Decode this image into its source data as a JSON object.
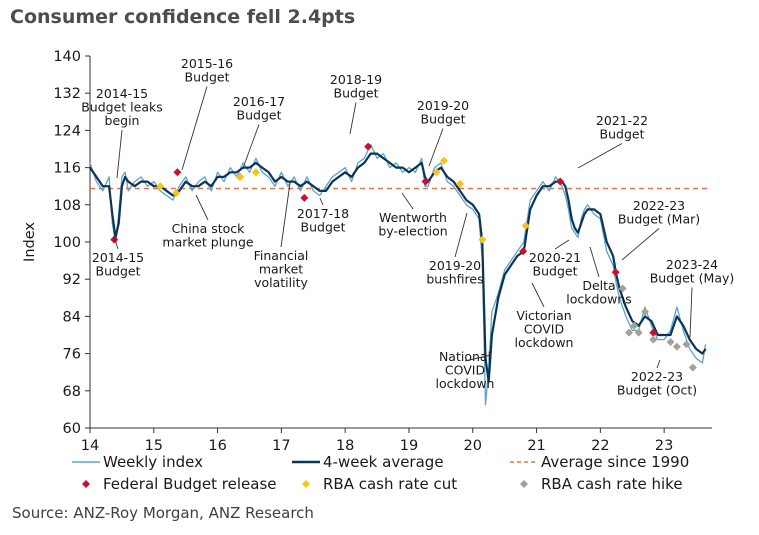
{
  "title": "Consumer confidence fell 2.4pts",
  "source": "Source: ANZ-Roy Morgan, ANZ Research",
  "colors": {
    "weekly": "#5ba3d0",
    "avg4": "#0b3553",
    "average_line": "#e8724a",
    "budget_marker": "#c8102e",
    "rate_cut_marker": "#f5c518",
    "rate_hike_marker": "#a89f97"
  },
  "chart_data": {
    "type": "line",
    "title": "Consumer confidence fell 2.4pts",
    "xlabel": "",
    "ylabel": "Index",
    "xlim": [
      2014.0,
      2023.75
    ],
    "ylim": [
      60,
      140
    ],
    "yticks": [
      60,
      68,
      76,
      84,
      92,
      100,
      108,
      116,
      124,
      132,
      140
    ],
    "xticks": [
      {
        "value": 2014,
        "label": "14"
      },
      {
        "value": 2015,
        "label": "15"
      },
      {
        "value": 2016,
        "label": "16"
      },
      {
        "value": 2017,
        "label": "17"
      },
      {
        "value": 2018,
        "label": "18"
      },
      {
        "value": 2019,
        "label": "19"
      },
      {
        "value": 2020,
        "label": "20"
      },
      {
        "value": 2021,
        "label": "21"
      },
      {
        "value": 2022,
        "label": "22"
      },
      {
        "value": 2023,
        "label": "23"
      }
    ],
    "grid": false,
    "average_since_1990": 111.5,
    "series": [
      {
        "name": "4-week average",
        "x": [
          2014.0,
          2014.1,
          2014.2,
          2014.3,
          2014.35,
          2014.4,
          2014.45,
          2014.5,
          2014.55,
          2014.6,
          2014.7,
          2014.8,
          2014.9,
          2015.0,
          2015.1,
          2015.2,
          2015.3,
          2015.4,
          2015.5,
          2015.6,
          2015.7,
          2015.8,
          2015.9,
          2016.0,
          2016.1,
          2016.2,
          2016.3,
          2016.4,
          2016.5,
          2016.6,
          2016.7,
          2016.8,
          2016.9,
          2017.0,
          2017.1,
          2017.2,
          2017.3,
          2017.4,
          2017.5,
          2017.6,
          2017.7,
          2017.8,
          2017.9,
          2018.0,
          2018.1,
          2018.2,
          2018.3,
          2018.4,
          2018.5,
          2018.6,
          2018.7,
          2018.8,
          2018.9,
          2019.0,
          2019.1,
          2019.2,
          2019.25,
          2019.3,
          2019.4,
          2019.5,
          2019.6,
          2019.7,
          2019.8,
          2019.9,
          2020.0,
          2020.1,
          2020.15,
          2020.2,
          2020.25,
          2020.3,
          2020.4,
          2020.5,
          2020.6,
          2020.7,
          2020.8,
          2020.9,
          2021.0,
          2021.1,
          2021.2,
          2021.3,
          2021.4,
          2021.45,
          2021.5,
          2021.55,
          2021.6,
          2021.65,
          2021.7,
          2021.75,
          2021.8,
          2021.9,
          2022.0,
          2022.1,
          2022.2,
          2022.25,
          2022.3,
          2022.4,
          2022.5,
          2022.6,
          2022.7,
          2022.8,
          2022.9,
          2023.0,
          2023.1,
          2023.2,
          2023.3,
          2023.4,
          2023.5,
          2023.6,
          2023.65
        ],
        "y": [
          116,
          114,
          112,
          112,
          106,
          101,
          104,
          112,
          114,
          113,
          112,
          113,
          113,
          112,
          112,
          111,
          110,
          111,
          113,
          112,
          112,
          113,
          112,
          114,
          114,
          115,
          115,
          116,
          116,
          117,
          116,
          115,
          113,
          114,
          113,
          113,
          112,
          113,
          112,
          111,
          111,
          113,
          114,
          115,
          114,
          116,
          117,
          119,
          119,
          118,
          117,
          116,
          116,
          115,
          116,
          117,
          114,
          113,
          115,
          116,
          114,
          113,
          111,
          109,
          108,
          106,
          100,
          75,
          70,
          80,
          88,
          93,
          95,
          97,
          98,
          107,
          110,
          112,
          112,
          113,
          113,
          112,
          109,
          105,
          103,
          102,
          104,
          106,
          107,
          107,
          106,
          100,
          97,
          93,
          90,
          86,
          83,
          82,
          84,
          83,
          80,
          80,
          80,
          84,
          82,
          79,
          77,
          76,
          77
        ]
      },
      {
        "name": "Weekly index",
        "x": [
          2014.0,
          2014.1,
          2014.2,
          2014.3,
          2014.35,
          2014.4,
          2014.45,
          2014.5,
          2014.55,
          2014.6,
          2014.7,
          2014.8,
          2014.9,
          2015.0,
          2015.1,
          2015.2,
          2015.3,
          2015.4,
          2015.5,
          2015.6,
          2015.7,
          2015.8,
          2015.9,
          2016.0,
          2016.1,
          2016.2,
          2016.3,
          2016.4,
          2016.5,
          2016.6,
          2016.7,
          2016.8,
          2016.9,
          2017.0,
          2017.1,
          2017.2,
          2017.3,
          2017.4,
          2017.5,
          2017.6,
          2017.7,
          2017.8,
          2017.9,
          2018.0,
          2018.1,
          2018.2,
          2018.3,
          2018.4,
          2018.5,
          2018.6,
          2018.7,
          2018.8,
          2018.9,
          2019.0,
          2019.1,
          2019.2,
          2019.25,
          2019.3,
          2019.4,
          2019.5,
          2019.6,
          2019.7,
          2019.8,
          2019.9,
          2020.0,
          2020.1,
          2020.15,
          2020.2,
          2020.25,
          2020.3,
          2020.4,
          2020.5,
          2020.6,
          2020.7,
          2020.8,
          2020.9,
          2021.0,
          2021.1,
          2021.2,
          2021.3,
          2021.4,
          2021.45,
          2021.5,
          2021.55,
          2021.6,
          2021.65,
          2021.7,
          2021.75,
          2021.8,
          2021.9,
          2022.0,
          2022.1,
          2022.2,
          2022.25,
          2022.3,
          2022.4,
          2022.5,
          2022.6,
          2022.7,
          2022.8,
          2022.9,
          2023.0,
          2023.1,
          2023.2,
          2023.3,
          2023.4,
          2023.5,
          2023.6,
          2023.65
        ],
        "y": [
          117,
          113,
          111,
          114,
          104,
          100,
          106,
          114,
          115,
          111,
          113,
          114,
          112,
          113,
          111,
          110,
          109,
          112,
          114,
          111,
          113,
          114,
          111,
          115,
          113,
          116,
          114,
          117,
          115,
          118,
          115,
          114,
          112,
          115,
          112,
          114,
          111,
          114,
          111,
          110,
          112,
          114,
          115,
          116,
          113,
          117,
          118,
          121,
          118,
          119,
          116,
          117,
          115,
          116,
          115,
          118,
          112,
          112,
          116,
          117,
          113,
          112,
          110,
          108,
          107,
          105,
          96,
          65,
          73,
          85,
          89,
          94,
          96,
          98,
          100,
          109,
          111,
          113,
          111,
          114,
          112,
          110,
          107,
          103,
          102,
          101,
          105,
          107,
          108,
          106,
          105,
          98,
          95,
          91,
          88,
          84,
          81,
          81,
          86,
          82,
          79,
          79,
          81,
          86,
          81,
          77,
          75,
          74,
          78
        ]
      }
    ],
    "markers": {
      "federal_budget_release": [
        {
          "x": 2014.38,
          "y": 100.5
        },
        {
          "x": 2015.37,
          "y": 115
        },
        {
          "x": 2016.35,
          "y": 114
        },
        {
          "x": 2017.36,
          "y": 109.5
        },
        {
          "x": 2018.36,
          "y": 120.5
        },
        {
          "x": 2019.26,
          "y": 113
        },
        {
          "x": 2020.79,
          "y": 98
        },
        {
          "x": 2021.37,
          "y": 113
        },
        {
          "x": 2022.24,
          "y": 93.5
        },
        {
          "x": 2022.83,
          "y": 80.5
        }
      ],
      "rba_cash_rate_cut": [
        {
          "x": 2015.1,
          "y": 112
        },
        {
          "x": 2015.35,
          "y": 110.5
        },
        {
          "x": 2016.35,
          "y": 114
        },
        {
          "x": 2016.6,
          "y": 115
        },
        {
          "x": 2019.43,
          "y": 115
        },
        {
          "x": 2019.55,
          "y": 117.5
        },
        {
          "x": 2019.8,
          "y": 112.5
        },
        {
          "x": 2020.15,
          "y": 100.5
        },
        {
          "x": 2020.83,
          "y": 103.5
        }
      ],
      "rba_cash_rate_hike": [
        {
          "x": 2022.35,
          "y": 90
        },
        {
          "x": 2022.45,
          "y": 80.5
        },
        {
          "x": 2022.53,
          "y": 82
        },
        {
          "x": 2022.6,
          "y": 80.5
        },
        {
          "x": 2022.7,
          "y": 85
        },
        {
          "x": 2022.83,
          "y": 79
        },
        {
          "x": 2023.1,
          "y": 78.5
        },
        {
          "x": 2023.2,
          "y": 77.5
        },
        {
          "x": 2023.35,
          "y": 78
        },
        {
          "x": 2023.45,
          "y": 73
        }
      ]
    },
    "annotations": [
      {
        "text": [
          "2014-15",
          "Budget leaks",
          "begin"
        ],
        "anchor": "top"
      },
      {
        "text": [
          "2015-16",
          "Budget"
        ],
        "anchor": "top"
      },
      {
        "text": [
          "2016-17",
          "Budget"
        ],
        "anchor": "top"
      },
      {
        "text": [
          "2018-19",
          "Budget"
        ],
        "anchor": "top"
      },
      {
        "text": [
          "2019-20",
          "Budget"
        ],
        "anchor": "top"
      },
      {
        "text": [
          "2021-22",
          "Budget"
        ],
        "anchor": "top"
      },
      {
        "text": [
          "2014-15",
          "Budget"
        ],
        "anchor": "bottom"
      },
      {
        "text": [
          "China stock",
          "market plunge"
        ],
        "anchor": "bottom"
      },
      {
        "text": [
          "Financial",
          "market",
          "volatility"
        ],
        "anchor": "bottom"
      },
      {
        "text": [
          "2017-18",
          "Budget"
        ],
        "anchor": "bottom"
      },
      {
        "text": [
          "Wentworth",
          "by-election"
        ],
        "anchor": "bottom"
      },
      {
        "text": [
          "2019-20",
          "bushfires"
        ],
        "anchor": "bottom"
      },
      {
        "text": [
          "National",
          "COVID",
          "lockdown"
        ],
        "anchor": "bottom"
      },
      {
        "text": [
          "Victorian",
          "COVID",
          "lockdown"
        ],
        "anchor": "bottom"
      },
      {
        "text": [
          "2020-21",
          "Budget"
        ],
        "anchor": "bottom"
      },
      {
        "text": [
          "Delta",
          "lockdowns"
        ],
        "anchor": "bottom"
      },
      {
        "text": [
          "2022-23",
          "Budget (Mar)"
        ],
        "anchor": "top"
      },
      {
        "text": [
          "2023-24",
          "Budget (May)"
        ],
        "anchor": "top"
      },
      {
        "text": [
          "2022-23",
          "Budget (Oct)"
        ],
        "anchor": "bottom"
      }
    ],
    "legend": [
      {
        "label": "Weekly index",
        "kind": "line-weekly"
      },
      {
        "label": "4-week average",
        "kind": "line-avg"
      },
      {
        "label": "Average since 1990",
        "kind": "line-dashed"
      },
      {
        "label": "Federal Budget release",
        "kind": "diamond-budget"
      },
      {
        "label": "RBA cash rate cut",
        "kind": "diamond-cut"
      },
      {
        "label": "RBA cash rate hike",
        "kind": "diamond-hike"
      }
    ],
    "legend_position": "bottom"
  }
}
